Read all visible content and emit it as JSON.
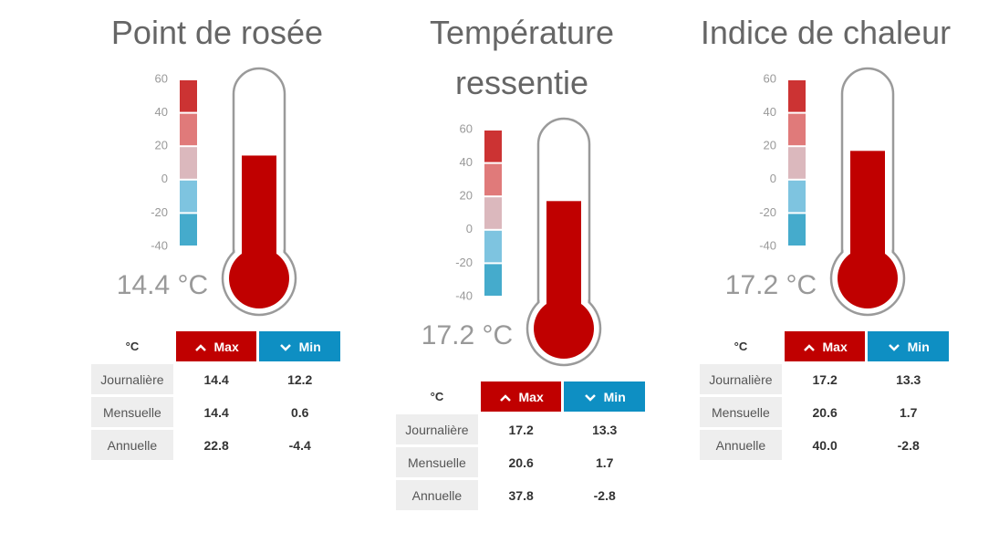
{
  "panels": [
    {
      "title": "Point de rosée",
      "scale": {
        "ylim": [
          -40,
          60
        ],
        "yticks": [
          60,
          40,
          20,
          0,
          -20,
          -40
        ]
      },
      "reading": {
        "value": 14.4,
        "label": "14.4 °C"
      },
      "table": {
        "header": [
          "°C",
          "Max",
          "Min"
        ],
        "rows": [
          [
            "Journalière",
            "14.4",
            "12.2"
          ],
          [
            "Mensuelle",
            "14.4",
            "0.6"
          ],
          [
            "Annuelle",
            "22.8",
            "-4.4"
          ]
        ]
      }
    },
    {
      "title": "Température ressentie",
      "scale": {
        "ylim": [
          -40,
          60
        ],
        "yticks": [
          60,
          40,
          20,
          0,
          -20,
          -40
        ]
      },
      "reading": {
        "value": 17.2,
        "label": "17.2 °C"
      },
      "table": {
        "header": [
          "°C",
          "Max",
          "Min"
        ],
        "rows": [
          [
            "Journalière",
            "17.2",
            "13.3"
          ],
          [
            "Mensuelle",
            "20.6",
            "1.7"
          ],
          [
            "Annuelle",
            "37.8",
            "-2.8"
          ]
        ]
      }
    },
    {
      "title": "Indice de chaleur",
      "scale": {
        "ylim": [
          -40,
          60
        ],
        "yticks": [
          60,
          40,
          20,
          0,
          -20,
          -40
        ]
      },
      "reading": {
        "value": 17.2,
        "label": "17.2 °C"
      },
      "table": {
        "header": [
          "°C",
          "Max",
          "Min"
        ],
        "rows": [
          [
            "Journalière",
            "17.2",
            "13.3"
          ],
          [
            "Mensuelle",
            "20.6",
            "1.7"
          ],
          [
            "Annuelle",
            "40.0",
            "-2.8"
          ]
        ]
      }
    }
  ]
}
